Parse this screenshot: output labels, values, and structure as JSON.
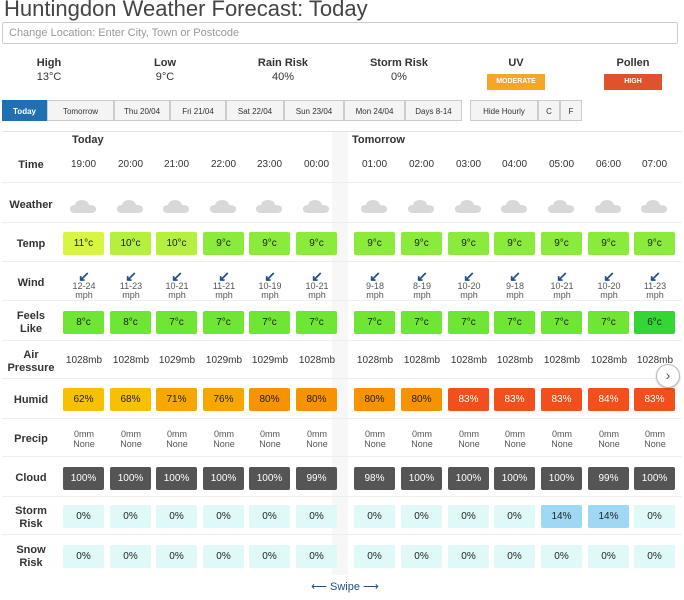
{
  "title": "Huntingdon Weather Forecast: Today",
  "search": {
    "placeholder": "Change Location: Enter City, Town or Postcode"
  },
  "summary": {
    "high": {
      "label": "High",
      "value": "13°C"
    },
    "low": {
      "label": "Low",
      "value": "9°C"
    },
    "rain": {
      "label": "Rain Risk",
      "value": "40%"
    },
    "storm": {
      "label": "Storm Risk",
      "value": "0%"
    },
    "uv": {
      "label": "UV",
      "value": "MODERATE",
      "color": "#f5a623"
    },
    "pollen": {
      "label": "Pollen",
      "value": "HIGH",
      "color": "#e0522a"
    }
  },
  "tabs": [
    "Today",
    "Tomorrow",
    "Thu 20/04",
    "Fri 21/04",
    "Sat 22/04",
    "Sun 23/04",
    "Mon 24/04",
    "Days 8-14",
    "Hide Hourly",
    "C",
    "F"
  ],
  "grid": {
    "day_labels": [
      "Today",
      "Tomorrow"
    ],
    "row_labels": {
      "time": "Time",
      "weather": "Weather",
      "temp": "Temp",
      "wind": "Wind",
      "feels_a": "Feels",
      "feels_b": "Like",
      "air_a": "Air",
      "air_b": "Pressure",
      "humid": "Humid",
      "precip": "Precip",
      "cloud": "Cloud",
      "storm_a": "Storm",
      "storm_b": "Risk",
      "snow_a": "Snow",
      "snow_b": "Risk"
    },
    "hours": [
      {
        "time": "19:00",
        "temp": "11°c",
        "temp_color": "#d8f542",
        "wind": "12-24",
        "feels": "8°c",
        "feels_color": "#6ee633",
        "pressure": "1028mb",
        "humid": "62%",
        "humid_color": "#f7c000",
        "precip_a": "0mm",
        "precip_b": "None",
        "cloud": "100%",
        "storm": "0%",
        "storm_color": "#dff9f9",
        "snow": "0%"
      },
      {
        "time": "20:00",
        "temp": "10°c",
        "temp_color": "#b4f03c",
        "wind": "11-23",
        "feels": "8°c",
        "feels_color": "#6ee633",
        "pressure": "1028mb",
        "humid": "68%",
        "humid_color": "#f7c000",
        "precip_a": "0mm",
        "precip_b": "None",
        "cloud": "100%",
        "storm": "0%",
        "storm_color": "#dff9f9",
        "snow": "0%"
      },
      {
        "time": "21:00",
        "temp": "10°c",
        "temp_color": "#b4f03c",
        "wind": "10-21",
        "feels": "7°c",
        "feels_color": "#6ee633",
        "pressure": "1029mb",
        "humid": "71%",
        "humid_color": "#f7a800",
        "precip_a": "0mm",
        "precip_b": "None",
        "cloud": "100%",
        "storm": "0%",
        "storm_color": "#dff9f9",
        "snow": "0%"
      },
      {
        "time": "22:00",
        "temp": "9°c",
        "temp_color": "#8aeb3a",
        "wind": "11-21",
        "feels": "7°c",
        "feels_color": "#6ee633",
        "pressure": "1029mb",
        "humid": "76%",
        "humid_color": "#f7a800",
        "precip_a": "0mm",
        "precip_b": "None",
        "cloud": "100%",
        "storm": "0%",
        "storm_color": "#dff9f9",
        "snow": "0%"
      },
      {
        "time": "23:00",
        "temp": "9°c",
        "temp_color": "#8aeb3a",
        "wind": "10-19",
        "feels": "7°c",
        "feels_color": "#6ee633",
        "pressure": "1029mb",
        "humid": "80%",
        "humid_color": "#f79200",
        "precip_a": "0mm",
        "precip_b": "None",
        "cloud": "100%",
        "storm": "0%",
        "storm_color": "#dff9f9",
        "snow": "0%"
      },
      {
        "time": "00:00",
        "temp": "9°c",
        "temp_color": "#8aeb3a",
        "wind": "10-21",
        "feels": "7°c",
        "feels_color": "#6ee633",
        "pressure": "1028mb",
        "humid": "80%",
        "humid_color": "#f79200",
        "precip_a": "0mm",
        "precip_b": "None",
        "cloud": "99%",
        "storm": "0%",
        "storm_color": "#dff9f9",
        "snow": "0%"
      },
      {
        "time": "01:00",
        "temp": "9°c",
        "temp_color": "#8aeb3a",
        "wind": "9-18",
        "feels": "7°c",
        "feels_color": "#6ee633",
        "pressure": "1028mb",
        "humid": "80%",
        "humid_color": "#f79200",
        "precip_a": "0mm",
        "precip_b": "None",
        "cloud": "98%",
        "storm": "0%",
        "storm_color": "#dff9f9",
        "snow": "0%"
      },
      {
        "time": "02:00",
        "temp": "9°c",
        "temp_color": "#8aeb3a",
        "wind": "8-19",
        "feels": "7°c",
        "feels_color": "#6ee633",
        "pressure": "1028mb",
        "humid": "80%",
        "humid_color": "#f79200",
        "precip_a": "0mm",
        "precip_b": "None",
        "cloud": "100%",
        "storm": "0%",
        "storm_color": "#dff9f9",
        "snow": "0%"
      },
      {
        "time": "03:00",
        "temp": "9°c",
        "temp_color": "#8aeb3a",
        "wind": "10-20",
        "feels": "7°c",
        "feels_color": "#6ee633",
        "pressure": "1028mb",
        "humid": "83%",
        "humid_color": "#f24f1c",
        "precip_a": "0mm",
        "precip_b": "None",
        "cloud": "100%",
        "storm": "0%",
        "storm_color": "#dff9f9",
        "snow": "0%"
      },
      {
        "time": "04:00",
        "temp": "9°c",
        "temp_color": "#8aeb3a",
        "wind": "9-18",
        "feels": "7°c",
        "feels_color": "#6ee633",
        "pressure": "1028mb",
        "humid": "83%",
        "humid_color": "#f24f1c",
        "precip_a": "0mm",
        "precip_b": "None",
        "cloud": "100%",
        "storm": "0%",
        "storm_color": "#dff9f9",
        "snow": "0%"
      },
      {
        "time": "05:00",
        "temp": "9°c",
        "temp_color": "#8aeb3a",
        "wind": "10-21",
        "feels": "7°c",
        "feels_color": "#6ee633",
        "pressure": "1028mb",
        "humid": "83%",
        "humid_color": "#f24f1c",
        "precip_a": "0mm",
        "precip_b": "None",
        "cloud": "100%",
        "storm": "14%",
        "storm_color": "#9fd8f5",
        "snow": "0%"
      },
      {
        "time": "06:00",
        "temp": "9°c",
        "temp_color": "#8aeb3a",
        "wind": "10-20",
        "feels": "7°c",
        "feels_color": "#6ee633",
        "pressure": "1028mb",
        "humid": "84%",
        "humid_color": "#f24f1c",
        "precip_a": "0mm",
        "precip_b": "None",
        "cloud": "99%",
        "storm": "14%",
        "storm_color": "#9fd8f5",
        "snow": "0%"
      },
      {
        "time": "07:00",
        "temp": "9°c",
        "temp_color": "#8aeb3a",
        "wind": "11-23",
        "feels": "6°c",
        "feels_color": "#33d633",
        "pressure": "1028mb",
        "humid": "83%",
        "humid_color": "#f24f1c",
        "precip_a": "0mm",
        "precip_b": "None",
        "cloud": "100%",
        "storm": "0%",
        "storm_color": "#dff9f9",
        "snow": "0%"
      }
    ],
    "wind_unit": "mph",
    "cloud_color": "#555555",
    "snow_color": "#dff9f9"
  },
  "scroll_icon": "chevron-right-icon",
  "swipe": {
    "label": "Swipe",
    "left_arrow": "⟵",
    "right_arrow": "⟶"
  }
}
